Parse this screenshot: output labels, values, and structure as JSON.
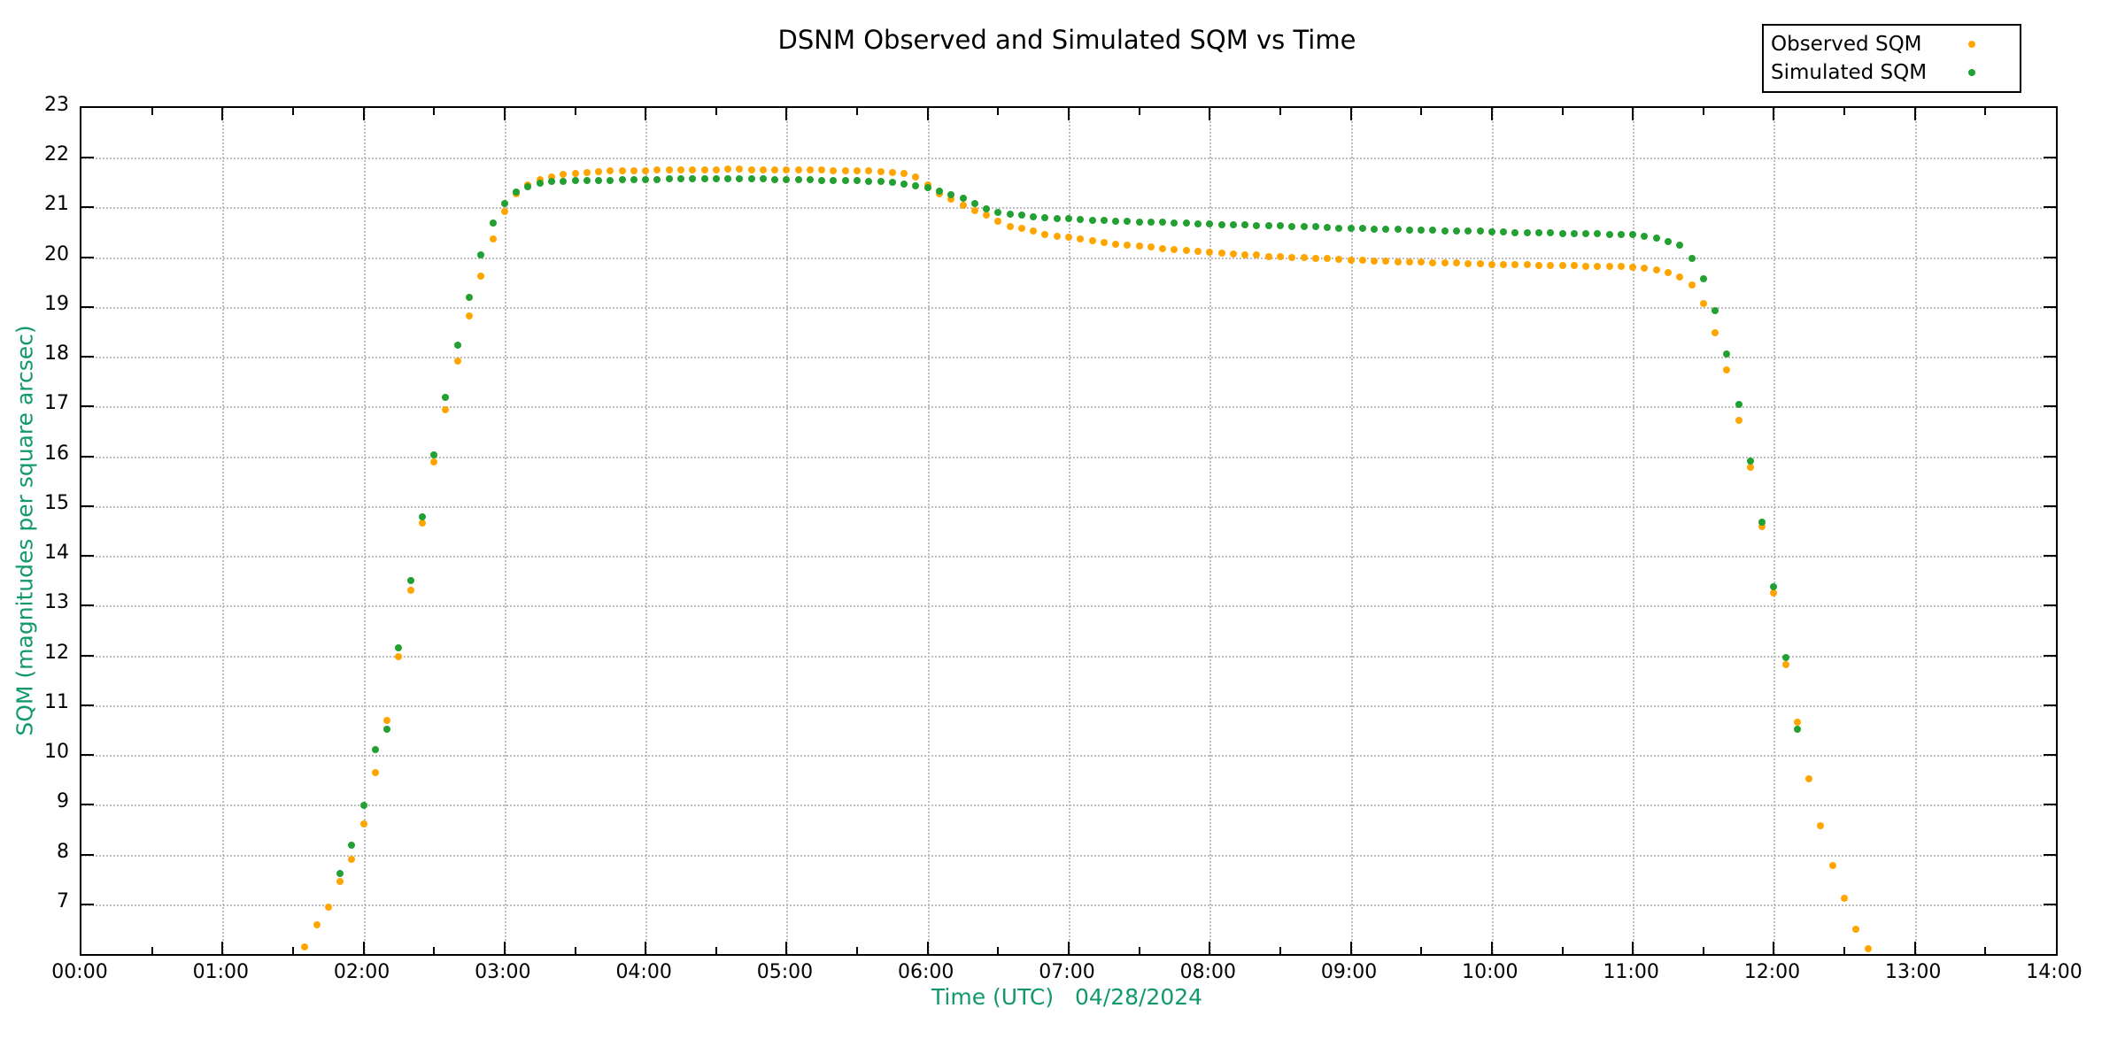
{
  "chart_data": {
    "type": "scatter",
    "title": "DSNM Observed and Simulated SQM vs Time",
    "xlabel": "Time (UTC)   04/28/2024",
    "ylabel": "SQM (magnitudes per square arcsec)",
    "label_color": "#12996b",
    "grid": true,
    "legend_position": "top-right-outside",
    "xlim_hours": [
      0,
      14
    ],
    "ylim": [
      6,
      23
    ],
    "x_ticks": [
      "00:00",
      "01:00",
      "02:00",
      "03:00",
      "04:00",
      "05:00",
      "06:00",
      "07:00",
      "08:00",
      "09:00",
      "10:00",
      "11:00",
      "12:00",
      "13:00",
      "14:00"
    ],
    "x_minor_ticks_every_hours": 0.5,
    "y_ticks": [
      "7",
      "8",
      "9",
      "10",
      "11",
      "12",
      "13",
      "14",
      "15",
      "16",
      "17",
      "18",
      "19",
      "20",
      "21",
      "22",
      "23"
    ],
    "series": [
      {
        "name": "Observed SQM",
        "color": "#ffa500",
        "points": [
          [
            1.583,
            6.15
          ],
          [
            1.667,
            6.58
          ],
          [
            1.75,
            6.95
          ],
          [
            1.833,
            7.46
          ],
          [
            1.917,
            7.91
          ],
          [
            2.0,
            8.62
          ],
          [
            2.083,
            9.65
          ],
          [
            2.167,
            10.7
          ],
          [
            2.25,
            11.97
          ],
          [
            2.333,
            13.31
          ],
          [
            2.417,
            14.66
          ],
          [
            2.5,
            15.89
          ],
          [
            2.583,
            16.94
          ],
          [
            2.667,
            17.92
          ],
          [
            2.75,
            18.82
          ],
          [
            2.833,
            19.62
          ],
          [
            2.917,
            20.37
          ],
          [
            3.0,
            20.92
          ],
          [
            3.083,
            21.28
          ],
          [
            3.167,
            21.45
          ],
          [
            3.25,
            21.56
          ],
          [
            3.333,
            21.62
          ],
          [
            3.417,
            21.66
          ],
          [
            3.5,
            21.69
          ],
          [
            3.583,
            21.71
          ],
          [
            3.667,
            21.72
          ],
          [
            3.75,
            21.73
          ],
          [
            3.833,
            21.73
          ],
          [
            3.917,
            21.74
          ],
          [
            4.0,
            21.74
          ],
          [
            4.083,
            21.75
          ],
          [
            4.167,
            21.75
          ],
          [
            4.25,
            21.75
          ],
          [
            4.333,
            21.76
          ],
          [
            4.417,
            21.76
          ],
          [
            4.5,
            21.76
          ],
          [
            4.583,
            21.77
          ],
          [
            4.667,
            21.77
          ],
          [
            4.75,
            21.76
          ],
          [
            4.833,
            21.76
          ],
          [
            4.917,
            21.76
          ],
          [
            5.0,
            21.76
          ],
          [
            5.083,
            21.75
          ],
          [
            5.167,
            21.75
          ],
          [
            5.25,
            21.75
          ],
          [
            5.333,
            21.74
          ],
          [
            5.417,
            21.74
          ],
          [
            5.5,
            21.73
          ],
          [
            5.583,
            21.73
          ],
          [
            5.667,
            21.72
          ],
          [
            5.75,
            21.71
          ],
          [
            5.833,
            21.68
          ],
          [
            5.917,
            21.62
          ],
          [
            6.0,
            21.45
          ],
          [
            6.083,
            21.28
          ],
          [
            6.167,
            21.17
          ],
          [
            6.25,
            21.04
          ],
          [
            6.333,
            20.93
          ],
          [
            6.417,
            20.84
          ],
          [
            6.5,
            20.73
          ],
          [
            6.583,
            20.61
          ],
          [
            6.667,
            20.58
          ],
          [
            6.75,
            20.53
          ],
          [
            6.833,
            20.46
          ],
          [
            6.917,
            20.43
          ],
          [
            7.0,
            20.4
          ],
          [
            7.083,
            20.36
          ],
          [
            7.167,
            20.33
          ],
          [
            7.25,
            20.29
          ],
          [
            7.333,
            20.27
          ],
          [
            7.417,
            20.25
          ],
          [
            7.5,
            20.22
          ],
          [
            7.583,
            20.2
          ],
          [
            7.667,
            20.18
          ],
          [
            7.75,
            20.16
          ],
          [
            7.833,
            20.14
          ],
          [
            7.917,
            20.12
          ],
          [
            8.0,
            20.1
          ],
          [
            8.083,
            20.08
          ],
          [
            8.167,
            20.07
          ],
          [
            8.25,
            20.05
          ],
          [
            8.333,
            20.04
          ],
          [
            8.417,
            20.02
          ],
          [
            8.5,
            20.01
          ],
          [
            8.583,
            20.0
          ],
          [
            8.667,
            19.99
          ],
          [
            8.75,
            19.98
          ],
          [
            8.833,
            19.97
          ],
          [
            8.917,
            19.96
          ],
          [
            9.0,
            19.95
          ],
          [
            9.083,
            19.94
          ],
          [
            9.167,
            19.93
          ],
          [
            9.25,
            19.92
          ],
          [
            9.333,
            19.91
          ],
          [
            9.417,
            19.9
          ],
          [
            9.5,
            19.9
          ],
          [
            9.583,
            19.89
          ],
          [
            9.667,
            19.88
          ],
          [
            9.75,
            19.88
          ],
          [
            9.833,
            19.87
          ],
          [
            9.917,
            19.87
          ],
          [
            10.0,
            19.86
          ],
          [
            10.083,
            19.86
          ],
          [
            10.167,
            19.85
          ],
          [
            10.25,
            19.85
          ],
          [
            10.333,
            19.84
          ],
          [
            10.417,
            19.84
          ],
          [
            10.5,
            19.83
          ],
          [
            10.583,
            19.83
          ],
          [
            10.667,
            19.82
          ],
          [
            10.75,
            19.82
          ],
          [
            10.833,
            19.81
          ],
          [
            10.917,
            19.81
          ],
          [
            11.0,
            19.8
          ],
          [
            11.083,
            19.78
          ],
          [
            11.167,
            19.75
          ],
          [
            11.25,
            19.7
          ],
          [
            11.333,
            19.6
          ],
          [
            11.417,
            19.44
          ],
          [
            11.5,
            19.07
          ],
          [
            11.583,
            18.48
          ],
          [
            11.667,
            17.74
          ],
          [
            11.75,
            16.73
          ],
          [
            11.833,
            15.78
          ],
          [
            11.917,
            14.59
          ],
          [
            12.0,
            13.25
          ],
          [
            12.083,
            11.82
          ],
          [
            12.167,
            10.66
          ],
          [
            12.25,
            9.52
          ],
          [
            12.333,
            8.58
          ],
          [
            12.417,
            7.78
          ],
          [
            12.5,
            7.12
          ],
          [
            12.583,
            6.5
          ],
          [
            12.667,
            6.1
          ]
        ]
      },
      {
        "name": "Simulated SQM",
        "color": "#22a032",
        "points": [
          [
            1.833,
            7.62
          ],
          [
            1.917,
            8.18
          ],
          [
            2.0,
            8.99
          ],
          [
            2.083,
            10.1
          ],
          [
            2.167,
            10.51
          ],
          [
            2.25,
            12.15
          ],
          [
            2.333,
            13.5
          ],
          [
            2.417,
            14.79
          ],
          [
            2.5,
            16.03
          ],
          [
            2.583,
            17.19
          ],
          [
            2.667,
            18.24
          ],
          [
            2.75,
            19.2
          ],
          [
            2.833,
            20.04
          ],
          [
            2.917,
            20.69
          ],
          [
            3.0,
            21.08
          ],
          [
            3.083,
            21.31
          ],
          [
            3.167,
            21.42
          ],
          [
            3.25,
            21.49
          ],
          [
            3.333,
            21.52
          ],
          [
            3.417,
            21.53
          ],
          [
            3.5,
            21.54
          ],
          [
            3.583,
            21.55
          ],
          [
            3.667,
            21.55
          ],
          [
            3.75,
            21.55
          ],
          [
            3.833,
            21.56
          ],
          [
            3.917,
            21.56
          ],
          [
            4.0,
            21.56
          ],
          [
            4.083,
            21.56
          ],
          [
            4.167,
            21.57
          ],
          [
            4.25,
            21.57
          ],
          [
            4.333,
            21.57
          ],
          [
            4.417,
            21.57
          ],
          [
            4.5,
            21.57
          ],
          [
            4.583,
            21.57
          ],
          [
            4.667,
            21.57
          ],
          [
            4.75,
            21.57
          ],
          [
            4.833,
            21.57
          ],
          [
            4.917,
            21.56
          ],
          [
            5.0,
            21.56
          ],
          [
            5.083,
            21.56
          ],
          [
            5.167,
            21.56
          ],
          [
            5.25,
            21.55
          ],
          [
            5.333,
            21.55
          ],
          [
            5.417,
            21.55
          ],
          [
            5.5,
            21.54
          ],
          [
            5.583,
            21.53
          ],
          [
            5.667,
            21.52
          ],
          [
            5.75,
            21.5
          ],
          [
            5.833,
            21.47
          ],
          [
            5.917,
            21.43
          ],
          [
            6.0,
            21.4
          ],
          [
            6.083,
            21.33
          ],
          [
            6.167,
            21.25
          ],
          [
            6.25,
            21.18
          ],
          [
            6.333,
            21.08
          ],
          [
            6.417,
            20.97
          ],
          [
            6.5,
            20.9
          ],
          [
            6.583,
            20.87
          ],
          [
            6.667,
            20.84
          ],
          [
            6.75,
            20.82
          ],
          [
            6.833,
            20.8
          ],
          [
            6.917,
            20.78
          ],
          [
            7.0,
            20.77
          ],
          [
            7.083,
            20.76
          ],
          [
            7.167,
            20.75
          ],
          [
            7.25,
            20.74
          ],
          [
            7.333,
            20.73
          ],
          [
            7.417,
            20.72
          ],
          [
            7.5,
            20.71
          ],
          [
            7.583,
            20.7
          ],
          [
            7.667,
            20.7
          ],
          [
            7.75,
            20.69
          ],
          [
            7.833,
            20.68
          ],
          [
            7.917,
            20.67
          ],
          [
            8.0,
            20.67
          ],
          [
            8.083,
            20.66
          ],
          [
            8.167,
            20.65
          ],
          [
            8.25,
            20.65
          ],
          [
            8.333,
            20.64
          ],
          [
            8.417,
            20.63
          ],
          [
            8.5,
            20.63
          ],
          [
            8.583,
            20.62
          ],
          [
            8.667,
            20.61
          ],
          [
            8.75,
            20.61
          ],
          [
            8.833,
            20.6
          ],
          [
            8.917,
            20.59
          ],
          [
            9.0,
            20.58
          ],
          [
            9.083,
            20.58
          ],
          [
            9.167,
            20.57
          ],
          [
            9.25,
            20.56
          ],
          [
            9.333,
            20.56
          ],
          [
            9.417,
            20.55
          ],
          [
            9.5,
            20.55
          ],
          [
            9.583,
            20.54
          ],
          [
            9.667,
            20.53
          ],
          [
            9.75,
            20.53
          ],
          [
            9.833,
            20.52
          ],
          [
            9.917,
            20.52
          ],
          [
            10.0,
            20.51
          ],
          [
            10.083,
            20.51
          ],
          [
            10.167,
            20.5
          ],
          [
            10.25,
            20.5
          ],
          [
            10.333,
            20.49
          ],
          [
            10.417,
            20.49
          ],
          [
            10.5,
            20.48
          ],
          [
            10.583,
            20.48
          ],
          [
            10.667,
            20.47
          ],
          [
            10.75,
            20.47
          ],
          [
            10.833,
            20.46
          ],
          [
            10.917,
            20.46
          ],
          [
            11.0,
            20.45
          ],
          [
            11.083,
            20.42
          ],
          [
            11.167,
            20.38
          ],
          [
            11.25,
            20.32
          ],
          [
            11.333,
            20.24
          ],
          [
            11.417,
            19.98
          ],
          [
            11.5,
            19.57
          ],
          [
            11.583,
            18.93
          ],
          [
            11.667,
            18.06
          ],
          [
            11.75,
            17.05
          ],
          [
            11.833,
            15.9
          ],
          [
            11.917,
            14.68
          ],
          [
            12.0,
            13.38
          ],
          [
            12.083,
            11.95
          ],
          [
            12.167,
            10.52
          ]
        ]
      }
    ]
  }
}
